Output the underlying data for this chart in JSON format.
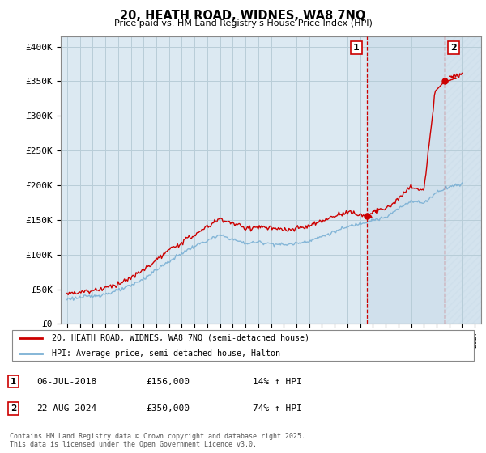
{
  "title": "20, HEATH ROAD, WIDNES, WA8 7NQ",
  "subtitle": "Price paid vs. HM Land Registry's House Price Index (HPI)",
  "ylabel_ticks": [
    "£0",
    "£50K",
    "£100K",
    "£150K",
    "£200K",
    "£250K",
    "£300K",
    "£350K",
    "£400K"
  ],
  "ytick_values": [
    0,
    50000,
    100000,
    150000,
    200000,
    250000,
    300000,
    350000,
    400000
  ],
  "ylim": [
    0,
    415000
  ],
  "xlim_start": 1994.5,
  "xlim_end": 2027.5,
  "xticks": [
    1995,
    1996,
    1997,
    1998,
    1999,
    2000,
    2001,
    2002,
    2003,
    2004,
    2005,
    2006,
    2007,
    2008,
    2009,
    2010,
    2011,
    2012,
    2013,
    2014,
    2015,
    2016,
    2017,
    2018,
    2019,
    2020,
    2021,
    2022,
    2023,
    2024,
    2025,
    2026,
    2027
  ],
  "marker1_x": 2018.51,
  "marker1_y": 156000,
  "marker1_label": "1",
  "marker2_x": 2024.64,
  "marker2_y": 350000,
  "marker2_label": "2",
  "vline1_x": 2018.51,
  "vline2_x": 2024.64,
  "legend_line1_label": "20, HEATH ROAD, WIDNES, WA8 7NQ (semi-detached house)",
  "legend_line2_label": "HPI: Average price, semi-detached house, Halton",
  "table_row1": [
    "1",
    "06-JUL-2018",
    "£156,000",
    "14% ↑ HPI"
  ],
  "table_row2": [
    "2",
    "22-AUG-2024",
    "£350,000",
    "74% ↑ HPI"
  ],
  "footer": "Contains HM Land Registry data © Crown copyright and database right 2025.\nThis data is licensed under the Open Government Licence v3.0.",
  "line_color_red": "#cc0000",
  "line_color_blue": "#7ab0d4",
  "plot_bg_color": "#dce9f2",
  "grid_color": "#b8cdd8",
  "vline_color": "#cc0000",
  "hatch_color": "#c8d8e4"
}
